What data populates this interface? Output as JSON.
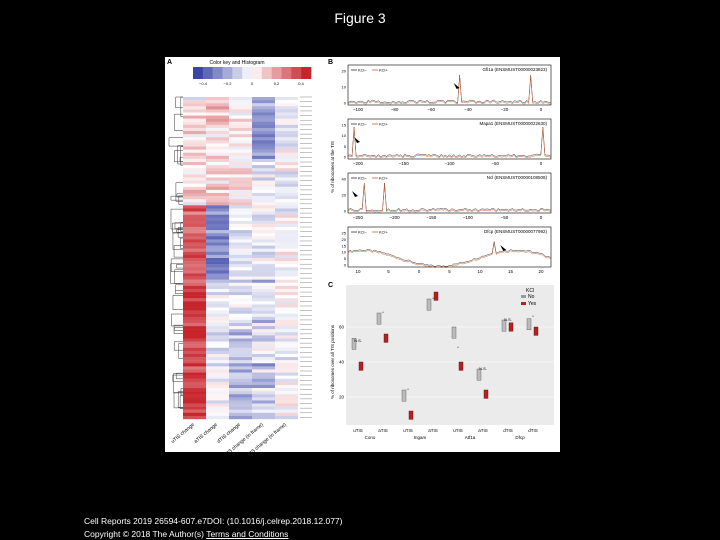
{
  "page": {
    "title": "Figure 3"
  },
  "panel_a": {
    "label": "A",
    "key_title": "Color key and Histogram",
    "key_ticks": [
      "−0.4",
      "−0.2",
      "0",
      "0.2",
      "0.4"
    ],
    "column_labels": [
      "uTIS change",
      "aTIS change",
      "dTIS change",
      "dTIS change (in frame)",
      "dTIS change (in frame)"
    ],
    "colors": {
      "neg": "#3a45a8",
      "pos": "#c8242c",
      "neutral": "#ffffff"
    }
  },
  "panel_b": {
    "label": "B",
    "legend": [
      "KCl−",
      "KCl+"
    ],
    "ylabel": "% of ribosomes at the TIS",
    "tracks": [
      {
        "gene": "Gfi1a (ENSMUST00000023823)",
        "xticks": [
          "−100",
          "−80",
          "−60",
          "−40",
          "−20",
          "0"
        ],
        "yticks": [
          "0",
          "10",
          "20"
        ]
      },
      {
        "gene": "Mapa1 (ENSMUST00000022630)",
        "xticks": [
          "−200",
          "−150",
          "−100",
          "−50",
          "0"
        ],
        "yticks": [
          "0",
          "5",
          "10",
          "15"
        ]
      },
      {
        "gene": "Ncl (ENSMUST00000108508)",
        "xticks": [
          "−250",
          "−200",
          "−150",
          "−100",
          "−50",
          "0"
        ],
        "yticks": [
          "0",
          "20",
          "40"
        ]
      },
      {
        "gene": "Dfcp (ENSMUST00000077992)",
        "xticks": [
          "10",
          "5",
          "0",
          "5",
          "10",
          "15",
          "20"
        ],
        "yticks": [
          "0",
          "5",
          "10",
          "15",
          "20",
          "25"
        ]
      }
    ]
  },
  "panel_c": {
    "label": "C",
    "ylabel": "% of ribosomes over all TIS positions",
    "legend_title": "KCl",
    "legend": [
      "No",
      "Yes"
    ],
    "sig_labels": [
      "N.S.",
      "*",
      "*",
      "*",
      "*",
      "N.S.",
      "N.S.",
      "*"
    ],
    "x_ticks": [
      "uTIS",
      "aTIS",
      "uTIS",
      "aTIS",
      "uTIS",
      "aTIS",
      "dTIS",
      "dTIS"
    ],
    "groups": [
      "Cono",
      "Ingam",
      "Atf1a",
      "Dfcp"
    ],
    "yticks": [
      "20",
      "40",
      "60"
    ]
  },
  "footer": {
    "line1": "Cell Reports 2019 26594-607.e7DOI: (10.1016/j.celrep.2018.12.077)",
    "line2_prefix": "Copyright © 2018 The Author(s) ",
    "line2_link": "Terms and Conditions"
  }
}
